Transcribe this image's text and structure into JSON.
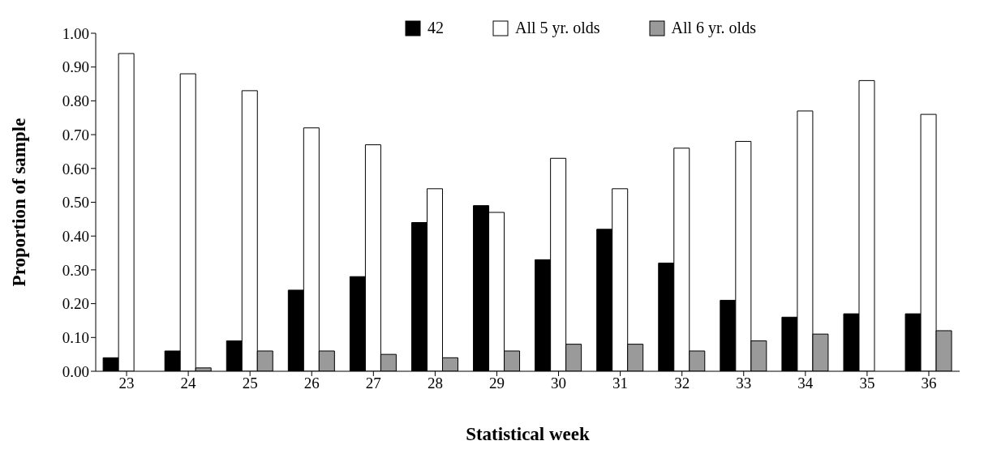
{
  "chart_data": {
    "type": "bar",
    "xlabel": "Statistical week",
    "ylabel": "Proportion of sample",
    "categories": [
      "23",
      "24",
      "25",
      "26",
      "27",
      "28",
      "29",
      "30",
      "31",
      "32",
      "33",
      "34",
      "35",
      "36"
    ],
    "series": [
      {
        "name": "42",
        "color": "#000000",
        "values": [
          0.04,
          0.06,
          0.09,
          0.24,
          0.28,
          0.44,
          0.49,
          0.33,
          0.42,
          0.32,
          0.21,
          0.16,
          0.17,
          0.17
        ]
      },
      {
        "name": "All 5 yr. olds",
        "color": "#ffffff",
        "values": [
          0.94,
          0.88,
          0.83,
          0.72,
          0.67,
          0.54,
          0.47,
          0.63,
          0.54,
          0.66,
          0.68,
          0.77,
          0.86,
          0.76
        ]
      },
      {
        "name": "All 6 yr. olds",
        "color": "#9a9a9a",
        "values": [
          0,
          0.01,
          0.06,
          0.06,
          0.05,
          0.04,
          0.06,
          0.08,
          0.08,
          0.06,
          0.09,
          0.11,
          0,
          0.12
        ]
      }
    ],
    "ylim": [
      0,
      1
    ],
    "yticks": [
      {
        "value": 0,
        "label": "0.00"
      },
      {
        "value": 0.1,
        "label": "0.10"
      },
      {
        "value": 0.2,
        "label": "0.20"
      },
      {
        "value": 0.3,
        "label": "0.30"
      },
      {
        "value": 0.4,
        "label": "0.40"
      },
      {
        "value": 0.5,
        "label": "0.50"
      },
      {
        "value": 0.6,
        "label": "0.60"
      },
      {
        "value": 0.7,
        "label": "0.70"
      },
      {
        "value": 0.8,
        "label": "0.80"
      },
      {
        "value": 0.9,
        "label": "0.90"
      },
      {
        "value": 1,
        "label": "1.00"
      }
    ],
    "grid": false,
    "legend": "top"
  }
}
